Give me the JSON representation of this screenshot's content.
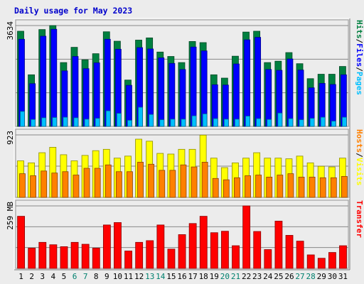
{
  "chart_data": {
    "type": "bar",
    "title": "Daily usage for May 2023",
    "categories": [
      "1",
      "2",
      "3",
      "4",
      "5",
      "6",
      "7",
      "8",
      "9",
      "10",
      "11",
      "12",
      "13",
      "14",
      "15",
      "16",
      "17",
      "18",
      "19",
      "20",
      "21",
      "22",
      "23",
      "24",
      "25",
      "26",
      "27",
      "28",
      "29",
      "30",
      "31"
    ],
    "weekend_days": [
      "6",
      "7",
      "13",
      "14",
      "20",
      "21",
      "27",
      "28"
    ],
    "colors": {
      "title": "#0000cc",
      "hits": "#008040",
      "files": "#0000ff",
      "pages": "#00c0ff",
      "visits": "#ffff00",
      "hosts": "#ff8000",
      "kbytes": "#ff0000",
      "weekday_label": "#000000",
      "weekend_label": "#00806e",
      "background": "#ececec"
    },
    "panels": [
      {
        "name": "requests",
        "ymax_label": "3634",
        "ymax": 3634,
        "legend": [
          "Hits",
          "/",
          "Files",
          "/",
          "Pages"
        ],
        "legend_colors": [
          "#008040",
          "#000000",
          "#0000ff",
          "#000000",
          "#00c0ff"
        ],
        "series": [
          {
            "name": "Hits",
            "color": "#008040",
            "values": [
              3430,
              1860,
              3490,
              3650,
              2300,
              2850,
              2400,
              2620,
              3410,
              3070,
              1670,
              3110,
              3190,
              2680,
              2520,
              2300,
              3060,
              3020,
              1860,
              1740,
              2530,
              3400,
              3430,
              2300,
              2350,
              2660,
              2260,
              1720,
              1880,
              1880,
              2160
            ]
          },
          {
            "name": "Files",
            "color": "#0000ff",
            "values": [
              3140,
              1540,
              3250,
              3500,
              2000,
              2520,
              2080,
              2290,
              3140,
              2780,
              1480,
              2840,
              2790,
              2470,
              2270,
              2050,
              2860,
              2720,
              1500,
              1490,
              2250,
              3120,
              3210,
              2050,
              2020,
              2430,
              2030,
              1390,
              1550,
              1510,
              1860
            ]
          },
          {
            "name": "Pages",
            "color": "#00c0ff",
            "values": [
              540,
              250,
              310,
              320,
              330,
              310,
              260,
              290,
              560,
              470,
              220,
              690,
              430,
              240,
              260,
              260,
              380,
              450,
              280,
              260,
              260,
              370,
              280,
              250,
              480,
              280,
              240,
              290,
              330,
              190,
              330
            ]
          }
        ]
      },
      {
        "name": "visitors",
        "ymax_label": "923",
        "ymax": 923,
        "legend": [
          "Hosts",
          "/",
          "Visits"
        ],
        "legend_colors": [
          "#ff8000",
          "#000000",
          "#ffff00"
        ],
        "series": [
          {
            "name": "Visits",
            "color": "#ffff00",
            "values": [
              540,
              510,
              660,
              740,
              630,
              540,
              620,
              690,
              710,
              580,
              610,
              860,
              830,
              650,
              640,
              710,
              710,
              920,
              580,
              440,
              510,
              580,
              660,
              580,
              580,
              570,
              610,
              510,
              460,
              450,
              580
            ]
          },
          {
            "name": "Hosts",
            "color": "#ff8000",
            "values": [
              350,
              320,
              390,
              360,
              380,
              330,
              430,
              430,
              480,
              380,
              380,
              520,
              490,
              400,
              400,
              480,
              450,
              520,
              280,
              260,
              290,
              320,
              330,
              300,
              330,
              350,
              300,
              300,
              290,
              290,
              310
            ]
          }
        ]
      },
      {
        "name": "transfer",
        "ymax_label": "259 MB",
        "ymax": 259,
        "legend": [
          "Transfer"
        ],
        "legend_colors": [
          "#ff0000"
        ],
        "series": [
          {
            "name": "Transfer",
            "color": "#ff0000",
            "values": [
              216,
              84,
              108,
              98,
              90,
              108,
              100,
              84,
              180,
              190,
              72,
              108,
              115,
              180,
              80,
              140,
              186,
              216,
              148,
              154,
              94,
              259,
              153,
              78,
              196,
              137,
              113,
              56,
              42,
              66,
              94
            ]
          }
        ]
      }
    ]
  }
}
